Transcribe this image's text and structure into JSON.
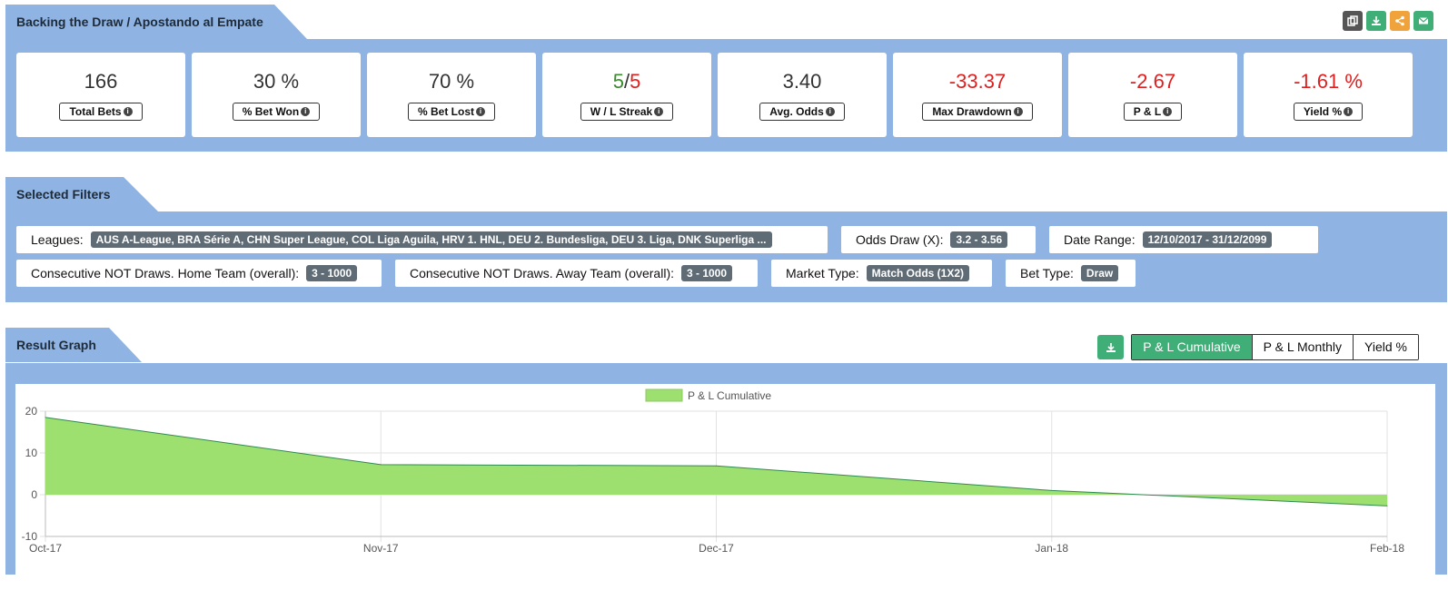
{
  "header": {
    "title": "Backing the Draw / Apostando al Empate",
    "tools": [
      {
        "icon": "copy-icon",
        "color": "#555555"
      },
      {
        "icon": "download-icon",
        "color": "#3fae77"
      },
      {
        "icon": "share-icon",
        "color": "#f0a33a"
      },
      {
        "icon": "email-icon",
        "color": "#3fae77"
      }
    ]
  },
  "stats": [
    {
      "value": "166",
      "label": "Total Bets"
    },
    {
      "value": "30 %",
      "label": "% Bet Won"
    },
    {
      "value": "70 %",
      "label": "% Bet Lost"
    },
    {
      "value_win": "5",
      "value_sep": "/",
      "value_loss": "5",
      "label": "W / L Streak"
    },
    {
      "value": "3.40",
      "label": "Avg. Odds"
    },
    {
      "value": "-33.37",
      "label": "Max Drawdown"
    },
    {
      "value": "-2.67",
      "label": "P & L"
    },
    {
      "value": "-1.61 %",
      "label": "Yield %"
    }
  ],
  "filters_section": {
    "title": "Selected Filters",
    "items": [
      {
        "label": "Leagues:",
        "tag": "AUS A-League, BRA Série A, CHN Super League, COL Liga Aguila, HRV 1. HNL, DEU 2. Bundesliga, DEU 3. Liga, DNK Superliga ..."
      },
      {
        "label": "Odds Draw (X):",
        "tag": "3.2 - 3.56"
      },
      {
        "label": "Date Range:",
        "tag": "12/10/2017 - 31/12/2099"
      },
      {
        "label": "Consecutive NOT Draws. Home Team (overall):",
        "tag": "3 - 1000"
      },
      {
        "label": "Consecutive NOT Draws. Away Team (overall):",
        "tag": "3 - 1000"
      },
      {
        "label": "Market Type:",
        "tag": "Match Odds (1X2)"
      },
      {
        "label": "Bet Type:",
        "tag": "Draw"
      }
    ]
  },
  "graph_section": {
    "title": "Result Graph",
    "tabs": [
      "P & L Cumulative",
      "P & L Monthly",
      "Yield %"
    ],
    "active_tab": 0
  },
  "chart_data": {
    "type": "area",
    "legend": [
      "P & L Cumulative"
    ],
    "legend_position": "top",
    "fill_color": "#9ee06f",
    "line_color": "#2f8a4f",
    "x": [
      "Oct-17",
      "Nov-17",
      "Dec-17",
      "Jan-18",
      "Feb-18"
    ],
    "series": [
      {
        "name": "P & L Cumulative",
        "values": [
          18.5,
          7.2,
          6.9,
          1.0,
          -2.67
        ]
      }
    ],
    "y_ticks": [
      "20",
      "10",
      "0",
      "-10"
    ],
    "ylim": [
      -10,
      20
    ],
    "grid": true
  }
}
